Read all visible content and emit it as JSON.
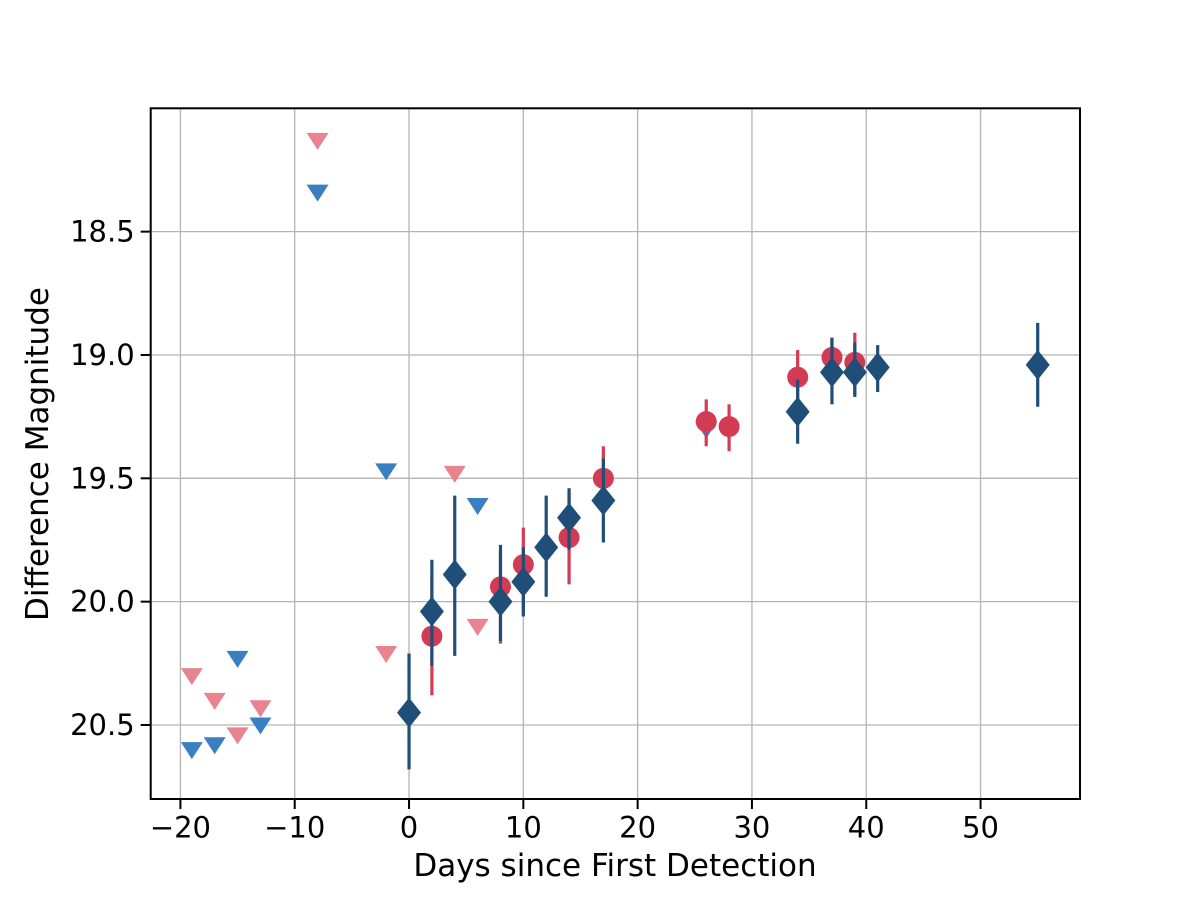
{
  "page": {
    "background": "#ffffff"
  },
  "chart_data": {
    "type": "scatter",
    "title": "",
    "xlabel": "Days since First Detection",
    "ylabel": "Difference Magnitude",
    "grid": {
      "on": true,
      "color": "#b4b4b4"
    },
    "legend": {
      "visible": false
    },
    "x_axis": {
      "lim": [
        -22.6,
        58.7
      ],
      "ticks": [
        -20,
        -10,
        0,
        10,
        20,
        30,
        40,
        50
      ],
      "tick_labels": [
        "−20",
        "−10",
        "0",
        "10",
        "20",
        "30",
        "40",
        "50"
      ]
    },
    "y_axis": {
      "inverted": true,
      "lim_top_mag": 18.0,
      "lim_bottom_mag": 20.8,
      "ticks": [
        18.5,
        19.0,
        19.5,
        20.0,
        20.5
      ],
      "tick_labels": [
        "18.5",
        "19.0",
        "19.5",
        "20.0",
        "20.5"
      ]
    },
    "series": [
      {
        "name": "blue-upper-limits",
        "marker": "triangle-down",
        "color": "#3a7fc1",
        "role": "upper-limit",
        "points": [
          {
            "x": -19,
            "y": 20.6
          },
          {
            "x": -17,
            "y": 20.58
          },
          {
            "x": -15,
            "y": 20.23
          },
          {
            "x": -13,
            "y": 20.5
          },
          {
            "x": -8,
            "y": 18.34
          },
          {
            "x": -2,
            "y": 19.47
          },
          {
            "x": 6,
            "y": 19.61
          },
          {
            "x": 26,
            "y": 19.3
          }
        ]
      },
      {
        "name": "pink-upper-limits",
        "marker": "triangle-down",
        "color": "#e9838f",
        "role": "upper-limit",
        "points": [
          {
            "x": -19,
            "y": 20.3
          },
          {
            "x": -17,
            "y": 20.4
          },
          {
            "x": -15,
            "y": 20.54
          },
          {
            "x": -13,
            "y": 20.43
          },
          {
            "x": -8,
            "y": 18.13
          },
          {
            "x": -2,
            "y": 20.21
          },
          {
            "x": 4,
            "y": 19.48
          },
          {
            "x": 6,
            "y": 20.1
          }
        ]
      },
      {
        "name": "red-detections",
        "marker": "circle",
        "color": "#d23b53",
        "role": "detection-with-errorbar",
        "points": [
          {
            "x": 2,
            "y": 20.14,
            "bar": [
              19.9,
              20.38
            ]
          },
          {
            "x": 8,
            "y": 19.94,
            "bar": [
              19.8,
              20.17
            ]
          },
          {
            "x": 10,
            "y": 19.85,
            "bar": [
              19.7,
              20.05
            ]
          },
          {
            "x": 14,
            "y": 19.74,
            "bar": [
              19.55,
              19.93
            ]
          },
          {
            "x": 17,
            "y": 19.5,
            "bar": [
              19.37,
              19.63
            ]
          },
          {
            "x": 26,
            "y": 19.27,
            "bar": [
              19.18,
              19.37
            ]
          },
          {
            "x": 28,
            "y": 19.29,
            "bar": [
              19.2,
              19.39
            ]
          },
          {
            "x": 34,
            "y": 19.09,
            "bar": [
              18.98,
              19.21
            ]
          },
          {
            "x": 37,
            "y": 19.01,
            "bar": [
              18.93,
              19.12
            ]
          },
          {
            "x": 39,
            "y": 19.03,
            "bar": [
              18.91,
              19.16
            ]
          }
        ]
      },
      {
        "name": "blue-detections",
        "marker": "diamond",
        "color": "#1f4e79",
        "role": "detection-with-errorbar",
        "points": [
          {
            "x": 0,
            "y": 20.45,
            "bar": [
              20.21,
              20.68
            ]
          },
          {
            "x": 2,
            "y": 20.04,
            "bar": [
              19.83,
              20.26
            ]
          },
          {
            "x": 4,
            "y": 19.89,
            "bar": [
              19.57,
              20.22
            ]
          },
          {
            "x": 8,
            "y": 20.0,
            "bar": [
              19.77,
              20.16
            ]
          },
          {
            "x": 10,
            "y": 19.92,
            "bar": [
              19.78,
              20.06
            ]
          },
          {
            "x": 12,
            "y": 19.78,
            "bar": [
              19.57,
              19.98
            ]
          },
          {
            "x": 14,
            "y": 19.66,
            "bar": [
              19.54,
              19.79
            ]
          },
          {
            "x": 17,
            "y": 19.59,
            "bar": [
              19.42,
              19.76
            ]
          },
          {
            "x": 34,
            "y": 19.23,
            "bar": [
              19.1,
              19.36
            ]
          },
          {
            "x": 37,
            "y": 19.07,
            "bar": [
              18.93,
              19.2
            ]
          },
          {
            "x": 39,
            "y": 19.07,
            "bar": [
              18.95,
              19.17
            ]
          },
          {
            "x": 41,
            "y": 19.05,
            "bar": [
              18.96,
              19.15
            ]
          },
          {
            "x": 55,
            "y": 19.04,
            "bar": [
              18.87,
              19.21
            ]
          }
        ]
      }
    ]
  }
}
